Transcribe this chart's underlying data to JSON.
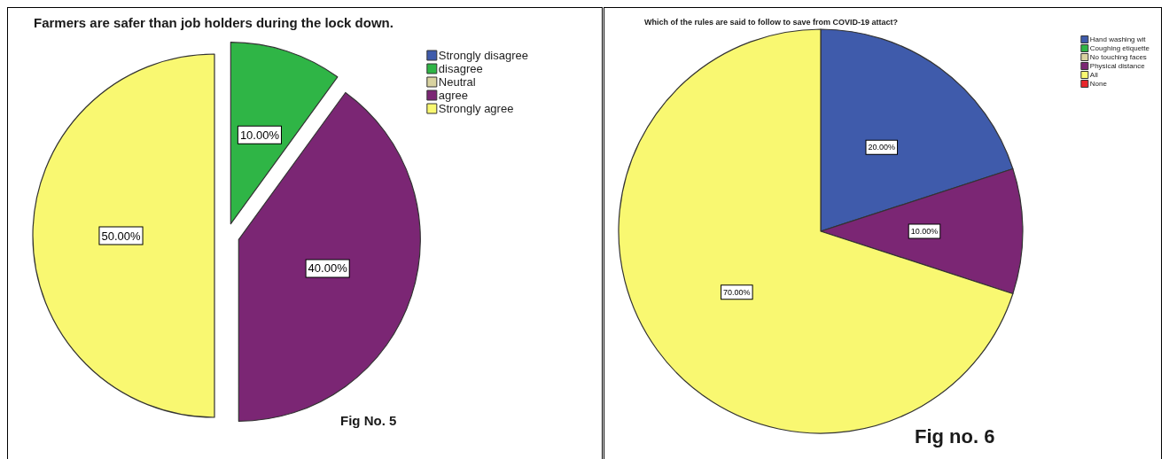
{
  "chart_data": [
    {
      "type": "pie",
      "title": "Farmers are safer than job holders during the lock down.",
      "categories": [
        "Strongly disagree",
        "disagree",
        "Neutral",
        "agree",
        "Strongly agree"
      ],
      "values": [
        0,
        10,
        0,
        40,
        50
      ],
      "colors": [
        "#3f5bab",
        "#2fb546",
        "#d9d3a0",
        "#7b2674",
        "#f9f871"
      ],
      "value_labels": [
        null,
        "10.00%",
        null,
        "40.00%",
        "50.00%"
      ],
      "legend": "top right",
      "annotations": [
        "Fig No. 5"
      ]
    },
    {
      "type": "pie",
      "title": "Which of the rules are said to follow to save from COVID-19 attact?",
      "categories": [
        "Hand washing wit",
        "Coughing etiquette",
        "No touching faces",
        "Physical distance",
        "All",
        "None"
      ],
      "values": [
        20,
        0,
        0,
        10,
        70,
        0
      ],
      "colors": [
        "#3f5bab",
        "#2fb546",
        "#d9d3a0",
        "#7b2674",
        "#f9f871",
        "#e8262b"
      ],
      "value_labels": [
        "20.00%",
        null,
        null,
        "10.00%",
        "70.00%",
        null
      ],
      "legend": "top right",
      "annotations": [
        "Fig no. 6"
      ]
    }
  ]
}
